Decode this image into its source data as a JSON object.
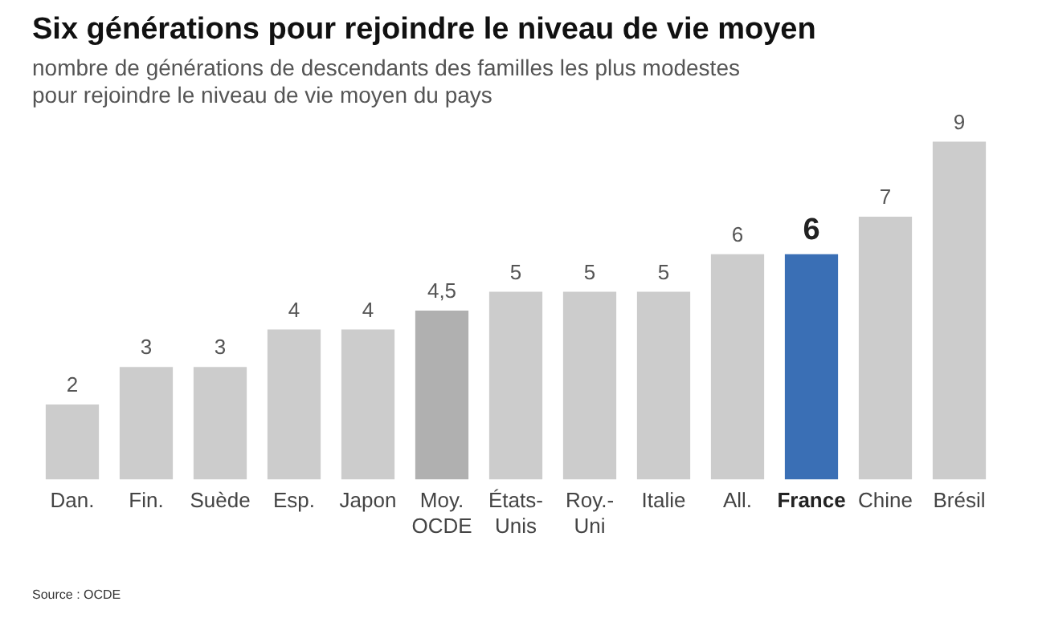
{
  "chart_data": {
    "type": "bar",
    "title": "Six générations pour rejoindre le niveau de vie moyen",
    "subtitle": "nombre de générations de descendants des familles les plus modestes pour rejoindre le niveau de vie moyen du pays",
    "categories": [
      "Dan.",
      "Fin.",
      "Suède",
      "Esp.",
      "Japon",
      "Moy.\nOCDE",
      "États-\nUnis",
      "Roy.-\nUni",
      "Italie",
      "All.",
      "France",
      "Chine",
      "Brésil"
    ],
    "values": [
      2,
      3,
      3,
      4,
      4,
      4.5,
      5,
      5,
      5,
      6,
      6,
      7,
      9
    ],
    "colors": [
      "#cccccc",
      "#cccccc",
      "#cccccc",
      "#cccccc",
      "#cccccc",
      "#b0b0b0",
      "#cccccc",
      "#cccccc",
      "#cccccc",
      "#cccccc",
      "#3a6fb5",
      "#cccccc",
      "#cccccc"
    ],
    "value_labels": [
      "2",
      "3",
      "3",
      "4",
      "4",
      "4,5",
      "5",
      "5",
      "5",
      "6",
      "6",
      "7",
      "9"
    ],
    "grid": false,
    "legend": false,
    "annotations": [
      "Source : OCDE"
    ]
  }
}
